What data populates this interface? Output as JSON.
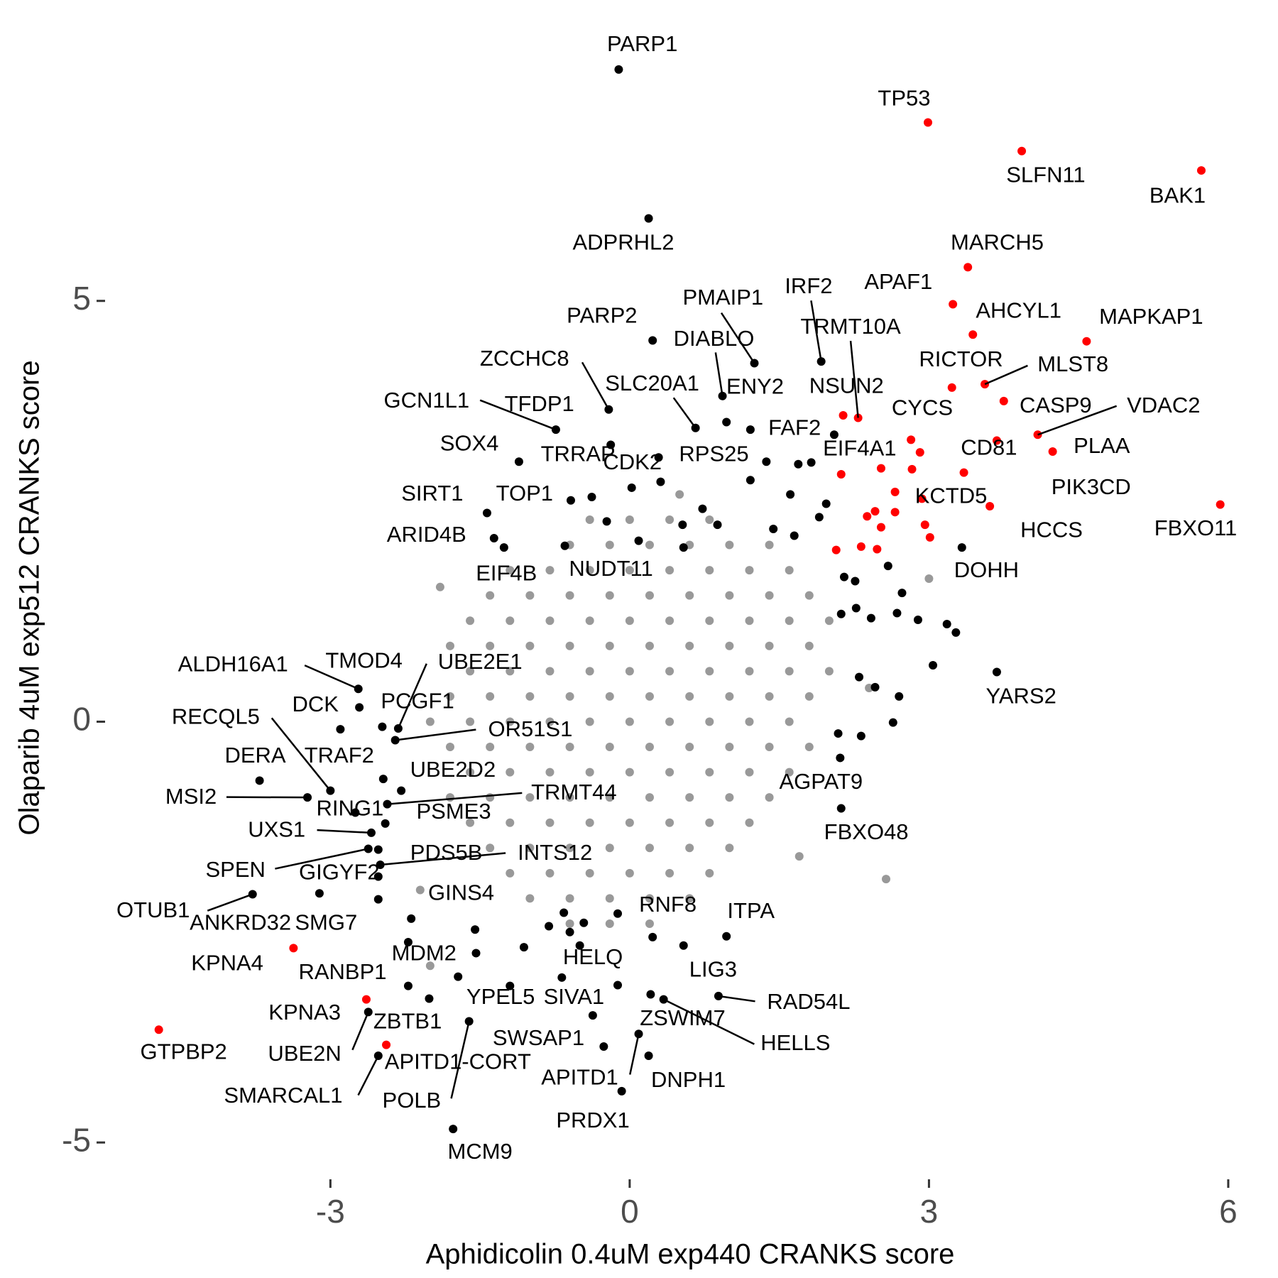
{
  "chart_data": {
    "type": "scatter",
    "x_label": "Aphidicolin 0.4uM exp440 CRANKS score",
    "y_label": "Olaparib 4uM exp512 CRANKS score",
    "xlim": [
      -5.28,
      6.15
    ],
    "ylim": [
      -5.37,
      8.28
    ],
    "xticks": [
      -3,
      0,
      3,
      6
    ],
    "yticks": [
      -5,
      0,
      5
    ],
    "grid": false,
    "series": [
      {
        "color": "#999999",
        "x": [
          -0.4,
          0,
          0.4,
          0.8,
          -0.6,
          -0.2,
          0.2,
          0.6,
          1,
          1.4,
          -1.2,
          -0.8,
          -0.4,
          0,
          0.4,
          0.8,
          1.2,
          1.6,
          -1.4,
          -1,
          -0.6,
          -0.2,
          0.2,
          0.6,
          1,
          1.4,
          1.8,
          -1.6,
          -1.2,
          -0.8,
          -0.4,
          0,
          0.4,
          0.8,
          1.2,
          1.6,
          2,
          -1.8,
          -1.4,
          -1,
          -0.6,
          -0.2,
          0.2,
          0.6,
          1,
          1.4,
          1.8,
          -1.6,
          -1.2,
          -0.8,
          -0.4,
          0,
          0.4,
          0.8,
          1.2,
          1.6,
          2,
          -1.8,
          -1.4,
          -1,
          -0.6,
          -0.2,
          0.2,
          0.6,
          1,
          1.4,
          1.8,
          -2,
          -1.6,
          -1.2,
          -0.8,
          -0.4,
          0,
          0.4,
          0.8,
          1.2,
          1.6,
          -1.8,
          -1.4,
          -1,
          -0.6,
          -0.2,
          0.2,
          0.6,
          1,
          1.4,
          1.8,
          -1.6,
          -1.2,
          -0.8,
          -0.4,
          0,
          0.4,
          0.8,
          1.2,
          1.6,
          -1.8,
          -1.4,
          -1,
          -0.6,
          -0.2,
          0.2,
          0.6,
          1,
          1.4,
          -1.6,
          -1.2,
          -0.8,
          -0.4,
          0,
          0.4,
          0.8,
          1.2,
          -1.4,
          -1,
          -0.6,
          -0.2,
          0.2,
          0.6,
          1,
          -1.2,
          -0.8,
          -0.4,
          0,
          0.4,
          0.8,
          -1,
          -0.6,
          -0.2,
          0.2,
          0.6,
          -0.6,
          -0.2,
          0.2,
          -1.9,
          2.4,
          1.7,
          2.57,
          3,
          -2.1,
          -2,
          0.5
        ],
        "y": [
          2.4,
          2.4,
          2.4,
          2.4,
          2.1,
          2.1,
          2.1,
          2.1,
          2.1,
          2.1,
          1.8,
          1.8,
          1.8,
          1.8,
          1.8,
          1.8,
          1.8,
          1.8,
          1.5,
          1.5,
          1.5,
          1.5,
          1.5,
          1.5,
          1.5,
          1.5,
          1.5,
          1.2,
          1.2,
          1.2,
          1.2,
          1.2,
          1.2,
          1.2,
          1.2,
          1.2,
          1.2,
          0.9,
          0.9,
          0.9,
          0.9,
          0.9,
          0.9,
          0.9,
          0.9,
          0.9,
          0.9,
          0.6,
          0.6,
          0.6,
          0.6,
          0.6,
          0.6,
          0.6,
          0.6,
          0.6,
          0.6,
          0.3,
          0.3,
          0.3,
          0.3,
          0.3,
          0.3,
          0.3,
          0.3,
          0.3,
          0.3,
          0,
          0,
          0,
          0,
          0,
          0,
          0,
          0,
          0,
          0,
          -0.3,
          -0.3,
          -0.3,
          -0.3,
          -0.3,
          -0.3,
          -0.3,
          -0.3,
          -0.3,
          -0.3,
          -0.6,
          -0.6,
          -0.6,
          -0.6,
          -0.6,
          -0.6,
          -0.6,
          -0.6,
          -0.6,
          -0.9,
          -0.9,
          -0.9,
          -0.9,
          -0.9,
          -0.9,
          -0.9,
          -0.9,
          -0.9,
          -1.2,
          -1.2,
          -1.2,
          -1.2,
          -1.2,
          -1.2,
          -1.2,
          -1.2,
          -1.5,
          -1.5,
          -1.5,
          -1.5,
          -1.5,
          -1.5,
          -1.5,
          -1.8,
          -1.8,
          -1.8,
          -1.8,
          -1.8,
          -1.8,
          -2.1,
          -2.1,
          -2.1,
          -2.1,
          -2.1,
          -2.4,
          -2.4,
          -2.4,
          1.6,
          0.4,
          -1.6,
          -1.87,
          1.7,
          -2,
          -2.9,
          2.7
        ]
      },
      {
        "color": "#000000",
        "labels": [
          "PARP1",
          "ADPRHL2",
          "PMAIP1",
          "IRF2",
          "PARP2",
          "DIABLO",
          "ZCCHC8",
          "SLC20A1",
          "ENY2",
          "GCN1L1",
          "TFDP1",
          "FAF2",
          "SOX4",
          "TRRAP",
          "RPS25",
          "CDK2",
          "SIRT1",
          "TOP1",
          "ARID4B",
          "DOHH",
          "NUDT11",
          "EIF4B",
          "YARS2",
          "ALDH16A1",
          "TMOD4",
          "UBE2E1",
          "DCK",
          "PCGF1",
          "RECQL5",
          "OR51S1",
          "DERA",
          "TRAF2",
          "UBE2D2",
          "MSI2",
          "TRMT44",
          "RING1",
          "PSME3",
          "UXS1",
          "PDS5B",
          "INTS12",
          "SPEN",
          "GIGYF2",
          "OTUB1",
          "GINS4",
          "ANKRD32",
          "SMG7",
          "RNF8",
          "ITPA",
          "MDM2",
          "RANBP1",
          "HELQ",
          "LIG3",
          "RAD54L",
          "YPEL5",
          "SIVA1",
          "ZBTB1",
          "ZSWIM7",
          "HELLS",
          "UBE2N",
          "SWSAP1",
          "DNPH1",
          "APITD1",
          "SMARCAL1",
          "POLB",
          "PRDX1",
          "MCM9",
          "AGPAT9",
          "FBXO48",
          null,
          null,
          null,
          null,
          null,
          null,
          null,
          null,
          null,
          null,
          null,
          null,
          null,
          null,
          null,
          null,
          null,
          null,
          null,
          null,
          null,
          null,
          null,
          null,
          null,
          null,
          null,
          null,
          null,
          null,
          null,
          null,
          null,
          null,
          null,
          null,
          null,
          null,
          null,
          null,
          null,
          null,
          null,
          null,
          null,
          null
        ],
        "x": [
          -0.11,
          0.19,
          1.25,
          1.92,
          0.23,
          0.93,
          -0.21,
          0.66,
          0.97,
          -0.74,
          -0.19,
          2.05,
          -1.11,
          0.29,
          1.37,
          0.02,
          -1.43,
          -0.59,
          -1.36,
          3.33,
          -0.65,
          -1.26,
          3.68,
          -2.72,
          -2.71,
          -2.32,
          -2.9,
          -2.48,
          -3,
          -2.35,
          -3.71,
          -2.47,
          -2.29,
          -3.23,
          -2.43,
          -2.75,
          -2.45,
          -2.59,
          -2.52,
          -2.5,
          -2.62,
          -2.52,
          -3.78,
          -2.19,
          -3.11,
          -2.52,
          -0.12,
          0.97,
          -2.22,
          -2.22,
          -0.68,
          0.54,
          0.89,
          -1.72,
          -0.37,
          -2.01,
          0.21,
          0.34,
          -2.62,
          -0.26,
          0.19,
          0.09,
          -2.52,
          -1.61,
          -0.08,
          -1.77,
          2.11,
          2.12,
          2.15,
          2.26,
          2.59,
          2.73,
          2.12,
          2.27,
          2.42,
          2.68,
          2.89,
          3.18,
          3.27,
          3.04,
          2.3,
          2.46,
          2.7,
          2.64,
          2.09,
          2.32,
          0.73,
          0.53,
          0.88,
          1.61,
          1.9,
          1.44,
          1.65,
          1.82,
          1.69,
          1.21,
          1.21,
          1.97,
          0.31,
          -0.38,
          -0.23,
          0.09,
          0.54,
          -0.66,
          -0.81,
          -0.46,
          -0.6,
          -1.06,
          -1.55,
          -1.54,
          -1.2,
          -0.5,
          -0.12,
          0.23
        ],
        "y": [
          7.75,
          5.98,
          4.26,
          4.28,
          4.53,
          3.87,
          3.71,
          3.49,
          3.56,
          3.47,
          3.29,
          3.41,
          3.09,
          3.14,
          3.09,
          2.78,
          2.48,
          2.63,
          2.18,
          2.07,
          2.09,
          2.07,
          0.59,
          0.39,
          0.17,
          -0.08,
          -0.09,
          -0.06,
          -0.82,
          -0.22,
          -0.7,
          -0.68,
          -0.82,
          -0.9,
          -0.98,
          -1.08,
          -1.21,
          -1.32,
          -1.52,
          -1.7,
          -1.51,
          -1.84,
          -2.05,
          -2.34,
          -2.04,
          -2.11,
          -2.28,
          -2.55,
          -2.62,
          -3.14,
          -3.04,
          -2.66,
          -3.26,
          -3.03,
          -3.49,
          -3.29,
          -3.24,
          -3.3,
          -3.45,
          -3.86,
          -3.97,
          -3.71,
          -3.97,
          -3.56,
          -4.39,
          -4.84,
          -0.43,
          -1.03,
          1.72,
          1.67,
          1.85,
          1.53,
          1.28,
          1.35,
          1.23,
          1.29,
          1.21,
          1.16,
          1.06,
          0.67,
          0.53,
          0.41,
          0.3,
          -0.01,
          -0.14,
          -0.17,
          2.53,
          2.34,
          2.34,
          2.7,
          2.43,
          2.29,
          2.21,
          3.08,
          3.06,
          2.87,
          3.47,
          2.59,
          2.85,
          2.67,
          2.38,
          2.15,
          2.07,
          -2.27,
          -2.43,
          -2.39,
          -2.5,
          -2.68,
          -2.47,
          -2.75,
          -3.14,
          -2.66,
          -3.13,
          -2.56
        ]
      },
      {
        "color": "#ff0000",
        "labels": [
          "TP53",
          "SLFN11",
          "BAK1",
          "MARCH5",
          "APAF1",
          "AHCYL1",
          "MAPKAP1",
          "TRMT10A",
          "NSUN2",
          "RICTOR",
          "MLST8",
          "CASP9",
          "VDAC2",
          "CYCS",
          "EIF4A1",
          "CD81",
          "PLAA",
          "KCTD5",
          "PIK3CD",
          "FBXO11",
          "HCCS",
          "KPNA4",
          "KPNA3",
          "GTPBP2",
          "APITD1-CORT",
          null,
          null,
          null,
          null,
          null,
          null,
          null,
          null,
          null,
          null,
          null,
          null,
          null
        ],
        "x": [
          2.99,
          3.93,
          5.73,
          3.39,
          3.24,
          3.44,
          4.58,
          2.29,
          2.14,
          3.23,
          3.56,
          3.75,
          4.09,
          2.82,
          2.12,
          3.68,
          4.24,
          3.61,
          3.35,
          5.92,
          3.01,
          -3.37,
          -2.64,
          -4.72,
          -2.44,
          2.91,
          2.52,
          2.66,
          2.46,
          2.38,
          2.52,
          2.66,
          2.96,
          2.07,
          2.32,
          2.48,
          2.93,
          2.83
        ],
        "y": [
          7.12,
          6.78,
          6.55,
          5.4,
          4.96,
          4.6,
          4.52,
          3.61,
          3.64,
          3.97,
          4.01,
          3.81,
          3.41,
          3.35,
          2.94,
          3.34,
          3.21,
          2.56,
          2.96,
          2.58,
          2.19,
          -2.69,
          -3.3,
          -3.66,
          -3.84,
          3.2,
          3.01,
          2.73,
          2.5,
          2.44,
          2.31,
          2.49,
          2.34,
          2.04,
          2.08,
          2.05,
          2.65,
          3
        ]
      }
    ]
  }
}
